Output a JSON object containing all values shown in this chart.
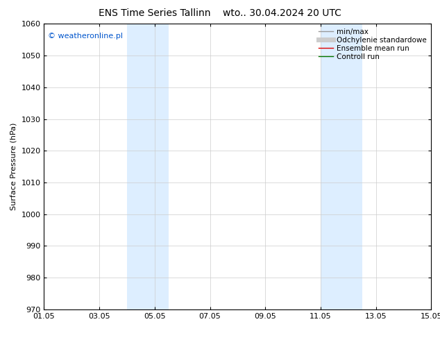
{
  "title_left": "ENS Time Series Tallinn",
  "title_right": "wto.. 30.04.2024 20 UTC",
  "ylabel": "Surface Pressure (hPa)",
  "ylim": [
    970,
    1060
  ],
  "yticks": [
    970,
    980,
    990,
    1000,
    1010,
    1020,
    1030,
    1040,
    1050,
    1060
  ],
  "xlim_days": [
    0,
    14
  ],
  "xtick_positions": [
    0,
    2,
    4,
    6,
    8,
    10,
    12,
    14
  ],
  "xtick_labels": [
    "01.05",
    "03.05",
    "05.05",
    "07.05",
    "09.05",
    "11.05",
    "13.05",
    "15.05"
  ],
  "shaded_bands": [
    {
      "x_start": 3.0,
      "x_end": 4.5
    },
    {
      "x_start": 10.0,
      "x_end": 11.5
    }
  ],
  "band_color": "#ddeeff",
  "background_color": "#ffffff",
  "watermark_text": "© weatheronline.pl",
  "watermark_color": "#0055cc",
  "legend_entries": [
    {
      "label": "min/max",
      "color": "#999999",
      "lw": 1.0
    },
    {
      "label": "Odchylenie standardowe",
      "color": "#cccccc",
      "lw": 5
    },
    {
      "label": "Ensemble mean run",
      "color": "#dd0000",
      "lw": 1.0
    },
    {
      "label": "Controll run",
      "color": "#007700",
      "lw": 1.0
    }
  ],
  "title_fontsize": 10,
  "axis_label_fontsize": 8,
  "tick_fontsize": 8,
  "legend_fontsize": 7.5,
  "watermark_fontsize": 8
}
